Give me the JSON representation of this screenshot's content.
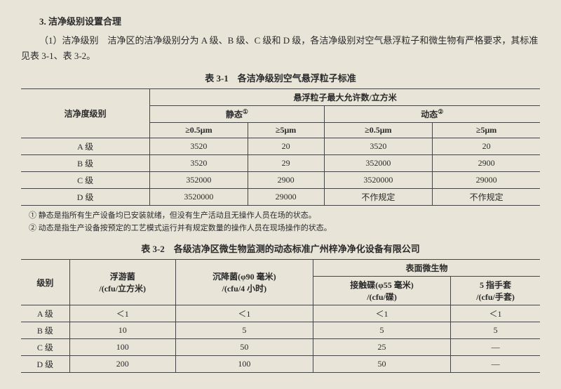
{
  "heading": "3. 洁净级别设置合理",
  "para1": "（1）洁净级别　洁净区的洁净级别分为 A 级、B 级、C 级和 D 级，各洁净级别对空气悬浮粒子和微生物有严格要求，其标准见表 3-1、表 3-2。",
  "table1": {
    "title": "表 3-1　各洁净级别空气悬浮粒子标准",
    "col_level": "洁净度级别",
    "header_top": "悬浮粒子最大允许数/立方米",
    "header_static": "静态",
    "sup1": "①",
    "header_dynamic": "动态",
    "sup2": "②",
    "sub_05_a": "≥0.5μm",
    "sub_5_a": "≥5μm",
    "sub_05_b": "≥0.5μm",
    "sub_5_b": "≥5μm",
    "rows": [
      {
        "level": "A 级",
        "s05": "3520",
        "s5": "20",
        "d05": "3520",
        "d5": "20"
      },
      {
        "level": "B 级",
        "s05": "3520",
        "s5": "29",
        "d05": "352000",
        "d5": "2900"
      },
      {
        "level": "C 级",
        "s05": "352000",
        "s5": "2900",
        "d05": "3520000",
        "d5": "29000"
      },
      {
        "level": "D 级",
        "s05": "3520000",
        "s5": "29000",
        "d05": "不作规定",
        "d5": "不作规定"
      }
    ]
  },
  "note1": "① 静态是指所有生产设备均已安装就绪，但没有生产活动且无操作人员在场的状态。",
  "note2": "② 动态是指生产设备按预定的工艺模式运行并有规定数量的操作人员在现场操作的状态。",
  "table2": {
    "title": "表 3-2　各级洁净区微生物监测的动态标准广州梓净净化设备有限公司",
    "col_level": "级别",
    "col_float": "浮游菌\n/(cfu/立方米)",
    "col_settle": "沉降菌(φ90 毫米)\n/(cfu/4 小时)",
    "col_surface": "表面微生物",
    "col_contact": "接触碟(φ55 毫米)\n/(cfu/碟)",
    "col_glove": "5 指手套\n/(cfu/手套)",
    "rows": [
      {
        "level": "A 级",
        "float": "＜1",
        "settle": "＜1",
        "contact": "＜1",
        "glove": "＜1"
      },
      {
        "level": "B 级",
        "float": "10",
        "settle": "5",
        "contact": "5",
        "glove": "5"
      },
      {
        "level": "C 级",
        "float": "100",
        "settle": "50",
        "contact": "25",
        "glove": "—"
      },
      {
        "level": "D 级",
        "float": "200",
        "settle": "100",
        "contact": "50",
        "glove": "—"
      }
    ]
  }
}
